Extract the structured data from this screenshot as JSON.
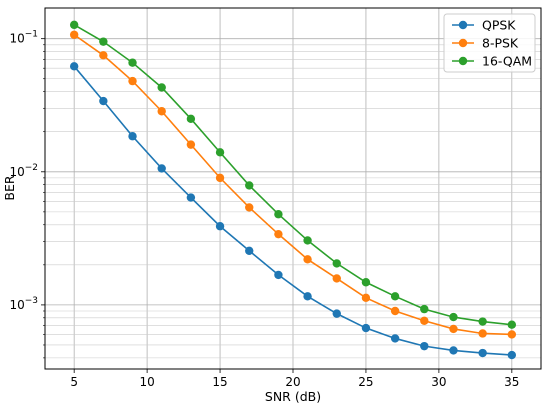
{
  "chart_data": {
    "type": "line",
    "title": "",
    "xlabel": "SNR (dB)",
    "ylabel": "BER",
    "x": [
      5,
      7,
      9,
      11,
      13,
      15,
      17,
      19,
      21,
      23,
      25,
      27,
      29,
      31,
      33,
      35
    ],
    "xlim": [
      3,
      37
    ],
    "ylim": [
      0.00033,
      0.17
    ],
    "yscale": "log",
    "xticks": [
      5,
      10,
      15,
      20,
      25,
      30,
      35
    ],
    "xtick_labels": [
      "5",
      "10",
      "15",
      "20",
      "25",
      "30",
      "35"
    ],
    "yticks_major": [
      0.001,
      0.01,
      0.1
    ],
    "grid": "on (major and minor)",
    "legend_placement": "top-right",
    "series": [
      {
        "name": "QPSK",
        "color": "#1f77b4",
        "values": [
          0.062,
          0.034,
          0.0185,
          0.0106,
          0.0064,
          0.0039,
          0.00255,
          0.00168,
          0.00116,
          0.00086,
          0.00067,
          0.00056,
          0.00049,
          0.000455,
          0.000435,
          0.00042
        ]
      },
      {
        "name": "8-PSK",
        "color": "#ff7f0e",
        "values": [
          0.107,
          0.075,
          0.048,
          0.0285,
          0.016,
          0.009,
          0.0054,
          0.0034,
          0.0022,
          0.00158,
          0.00113,
          0.0009,
          0.00076,
          0.00066,
          0.00061,
          0.0006
        ]
      },
      {
        "name": "16-QAM",
        "color": "#2ca02c",
        "values": [
          0.127,
          0.095,
          0.066,
          0.043,
          0.025,
          0.014,
          0.0079,
          0.0048,
          0.00305,
          0.00205,
          0.00148,
          0.00116,
          0.00093,
          0.00081,
          0.00075,
          0.00071
        ]
      }
    ]
  }
}
